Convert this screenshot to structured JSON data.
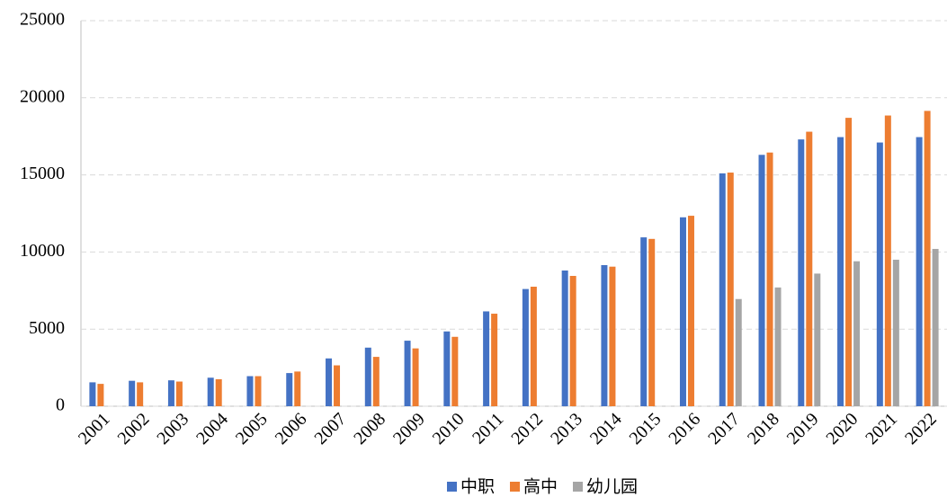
{
  "chart_data": {
    "type": "bar",
    "categories": [
      "2001",
      "2002",
      "2003",
      "2004",
      "2005",
      "2006",
      "2007",
      "2008",
      "2009",
      "2010",
      "2011",
      "2012",
      "2013",
      "2014",
      "2015",
      "2016",
      "2017",
      "2018",
      "2019",
      "2020",
      "2021",
      "2022"
    ],
    "series": [
      {
        "name": "中职",
        "color": "#4472c4",
        "values": [
          1550,
          1650,
          1680,
          1850,
          1950,
          2150,
          3100,
          3800,
          4250,
          4850,
          6150,
          7600,
          8800,
          9150,
          10950,
          12250,
          15100,
          16300,
          17300,
          17450,
          17100,
          17450
        ]
      },
      {
        "name": "高中",
        "color": "#ed7d31",
        "values": [
          1450,
          1550,
          1600,
          1750,
          1950,
          2250,
          2650,
          3200,
          3750,
          4500,
          6000,
          7750,
          8450,
          9050,
          10850,
          12350,
          15150,
          16450,
          17800,
          18700,
          18850,
          19150
        ]
      },
      {
        "name": "幼儿园",
        "color": "#a5a5a5",
        "values": [
          null,
          null,
          null,
          null,
          null,
          null,
          null,
          null,
          null,
          null,
          null,
          null,
          null,
          null,
          null,
          null,
          6950,
          7700,
          8600,
          9400,
          9500,
          10200
        ]
      }
    ],
    "ylim": [
      0,
      25000
    ],
    "yticks": [
      0,
      5000,
      10000,
      15000,
      20000,
      25000
    ],
    "grid": true,
    "legend": "bottom"
  }
}
